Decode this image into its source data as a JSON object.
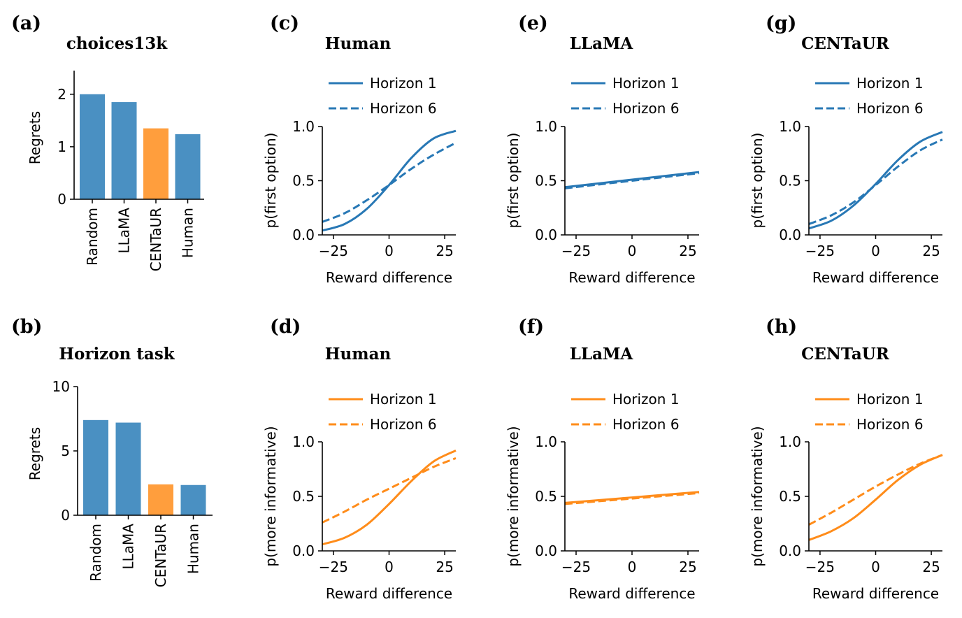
{
  "colors": {
    "blue": "#2878b5",
    "bar_blue": "#4a90c2",
    "orange": "#ff8c1a",
    "bar_orange": "#ff9e3d"
  },
  "chart_data": [
    {
      "id": "a",
      "letter": "(a)",
      "type": "bar",
      "title": "choices13k",
      "categories": [
        "Random",
        "LLaMA",
        "CENTaUR",
        "Human"
      ],
      "values": [
        2.0,
        1.85,
        1.35,
        1.24
      ],
      "highlight": "CENTaUR",
      "ylabel": "Regrets",
      "ylim": [
        0,
        2.45
      ],
      "yticks": [
        0,
        1,
        2
      ]
    },
    {
      "id": "b",
      "letter": "(b)",
      "type": "bar",
      "title": "Horizon task",
      "categories": [
        "Random",
        "LLaMA",
        "CENTaUR",
        "Human"
      ],
      "values": [
        7.4,
        7.2,
        2.4,
        2.35
      ],
      "highlight": "CENTaUR",
      "ylabel": "Regrets",
      "ylim": [
        0,
        10
      ],
      "yticks": [
        0,
        5,
        10
      ]
    },
    {
      "id": "c",
      "letter": "(c)",
      "type": "line",
      "title": "Human",
      "color": "blue",
      "xlabel": "Reward difference",
      "ylabel": "p(first option)",
      "xlim": [
        -30,
        30
      ],
      "ylim": [
        0,
        1
      ],
      "xticks": [
        -25,
        0,
        25
      ],
      "xtick_labels": [
        "−25",
        "0",
        "25"
      ],
      "yticks": [
        0,
        0.5,
        1
      ],
      "ytick_labels": [
        "0.0",
        "0.5",
        "1.0"
      ],
      "series": [
        {
          "name": "Horizon 1",
          "style": "solid",
          "x": [
            -30,
            -20,
            -10,
            0,
            10,
            20,
            30
          ],
          "y": [
            0.04,
            0.1,
            0.24,
            0.46,
            0.71,
            0.89,
            0.96
          ]
        },
        {
          "name": "Horizon 6",
          "style": "dashed",
          "x": [
            -30,
            -20,
            -10,
            0,
            10,
            20,
            30
          ],
          "y": [
            0.12,
            0.2,
            0.32,
            0.46,
            0.61,
            0.74,
            0.85
          ]
        }
      ]
    },
    {
      "id": "d",
      "letter": "(d)",
      "type": "line",
      "title": "Human",
      "color": "orange",
      "xlabel": "Reward difference",
      "ylabel": "p(more informative)",
      "xlim": [
        -30,
        30
      ],
      "ylim": [
        0,
        1
      ],
      "xticks": [
        -25,
        0,
        25
      ],
      "xtick_labels": [
        "−25",
        "0",
        "25"
      ],
      "yticks": [
        0,
        0.5,
        1
      ],
      "ytick_labels": [
        "0.0",
        "0.5",
        "1.0"
      ],
      "series": [
        {
          "name": "Horizon 1",
          "style": "solid",
          "x": [
            -30,
            -20,
            -10,
            0,
            10,
            20,
            30
          ],
          "y": [
            0.06,
            0.12,
            0.24,
            0.43,
            0.64,
            0.82,
            0.92
          ]
        },
        {
          "name": "Horizon 6",
          "style": "dashed",
          "x": [
            -30,
            -20,
            -10,
            0,
            10,
            20,
            30
          ],
          "y": [
            0.26,
            0.36,
            0.47,
            0.57,
            0.67,
            0.77,
            0.85
          ]
        }
      ]
    },
    {
      "id": "e",
      "letter": "(e)",
      "type": "line",
      "title": "LLaMA",
      "color": "blue",
      "xlabel": "Reward difference",
      "ylabel": "p(first option)",
      "xlim": [
        -30,
        30
      ],
      "ylim": [
        0,
        1
      ],
      "xticks": [
        -25,
        0,
        25
      ],
      "xtick_labels": [
        "−25",
        "0",
        "25"
      ],
      "yticks": [
        0,
        0.5,
        1
      ],
      "ytick_labels": [
        "0.0",
        "0.5",
        "1.0"
      ],
      "series": [
        {
          "name": "Horizon 1",
          "style": "solid",
          "x": [
            -30,
            0,
            30
          ],
          "y": [
            0.44,
            0.51,
            0.58
          ]
        },
        {
          "name": "Horizon 6",
          "style": "dashed",
          "x": [
            -30,
            0,
            30
          ],
          "y": [
            0.43,
            0.5,
            0.57
          ]
        }
      ]
    },
    {
      "id": "f",
      "letter": "(f)",
      "type": "line",
      "title": "LLaMA",
      "color": "orange",
      "xlabel": "Reward difference",
      "ylabel": "p(more informative)",
      "xlim": [
        -30,
        30
      ],
      "ylim": [
        0,
        1
      ],
      "xticks": [
        -25,
        0,
        25
      ],
      "xtick_labels": [
        "−25",
        "0",
        "25"
      ],
      "yticks": [
        0,
        0.5,
        1
      ],
      "ytick_labels": [
        "0.0",
        "0.5",
        "1.0"
      ],
      "series": [
        {
          "name": "Horizon 1",
          "style": "solid",
          "x": [
            -30,
            0,
            30
          ],
          "y": [
            0.44,
            0.49,
            0.54
          ]
        },
        {
          "name": "Horizon 6",
          "style": "dashed",
          "x": [
            -30,
            0,
            30
          ],
          "y": [
            0.43,
            0.48,
            0.53
          ]
        }
      ]
    },
    {
      "id": "g",
      "letter": "(g)",
      "type": "line",
      "title": "CENTaUR",
      "color": "blue",
      "xlabel": "Reward difference",
      "ylabel": "p(first option)",
      "xlim": [
        -30,
        30
      ],
      "ylim": [
        0,
        1
      ],
      "xticks": [
        -25,
        0,
        25
      ],
      "xtick_labels": [
        "−25",
        "0",
        "25"
      ],
      "yticks": [
        0,
        0.5,
        1
      ],
      "ytick_labels": [
        "0.0",
        "0.5",
        "1.0"
      ],
      "series": [
        {
          "name": "Horizon 1",
          "style": "solid",
          "x": [
            -30,
            -20,
            -10,
            0,
            10,
            20,
            30
          ],
          "y": [
            0.06,
            0.13,
            0.27,
            0.47,
            0.69,
            0.86,
            0.95
          ]
        },
        {
          "name": "Horizon 6",
          "style": "dashed",
          "x": [
            -30,
            -20,
            -10,
            0,
            10,
            20,
            30
          ],
          "y": [
            0.1,
            0.18,
            0.3,
            0.46,
            0.63,
            0.78,
            0.88
          ]
        }
      ]
    },
    {
      "id": "h",
      "letter": "(h)",
      "type": "line",
      "title": "CENTaUR",
      "color": "orange",
      "xlabel": "Reward difference",
      "ylabel": "p(more informative)",
      "xlim": [
        -30,
        30
      ],
      "ylim": [
        0,
        1
      ],
      "xticks": [
        -25,
        0,
        25
      ],
      "xtick_labels": [
        "−25",
        "0",
        "25"
      ],
      "yticks": [
        0,
        0.5,
        1
      ],
      "ytick_labels": [
        "0.0",
        "0.5",
        "1.0"
      ],
      "series": [
        {
          "name": "Horizon 1",
          "style": "solid",
          "x": [
            -30,
            -20,
            -10,
            0,
            10,
            20,
            30
          ],
          "y": [
            0.1,
            0.18,
            0.3,
            0.47,
            0.65,
            0.79,
            0.88
          ]
        },
        {
          "name": "Horizon 6",
          "style": "dashed",
          "x": [
            -30,
            -20,
            -10,
            0,
            10,
            20,
            30
          ],
          "y": [
            0.24,
            0.35,
            0.47,
            0.59,
            0.7,
            0.8,
            0.88
          ]
        }
      ]
    }
  ]
}
